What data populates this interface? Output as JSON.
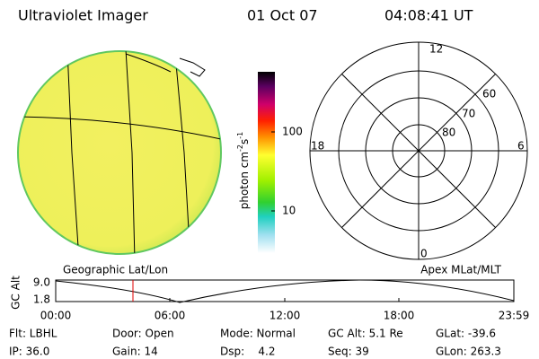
{
  "header": {
    "title": "Ultraviolet Imager",
    "date": "01 Oct 07",
    "time": "04:08:41 UT"
  },
  "image_panel": {
    "label": "Geographic Lat/Lon"
  },
  "colorbar": {
    "unit": [
      "photon cm",
      "-2",
      "s",
      "-1"
    ],
    "ticks": [
      "100",
      "10"
    ]
  },
  "polar_panel": {
    "label": "Apex MLat/MLT",
    "mlt_labels": [
      "12",
      "18",
      "6",
      "0"
    ],
    "lat_labels": [
      "60",
      "70",
      "80"
    ]
  },
  "altitude_plot": {
    "ylabel": "GC Alt",
    "yticks": [
      "9.0",
      "1.8"
    ],
    "xticks": [
      "00:00",
      "06:00",
      "12:00",
      "18:00",
      "23:59"
    ]
  },
  "info": {
    "rows": [
      [
        "Flt: LBHL",
        "Door: Open",
        "Mode: Normal",
        "GC Alt: 5.1 Re",
        "GLat: -39.6"
      ],
      [
        "IP: 36.0",
        "Gain: 14",
        "Dsp:    4.2",
        "Seq: 39",
        "GLon: 263.3"
      ]
    ]
  }
}
